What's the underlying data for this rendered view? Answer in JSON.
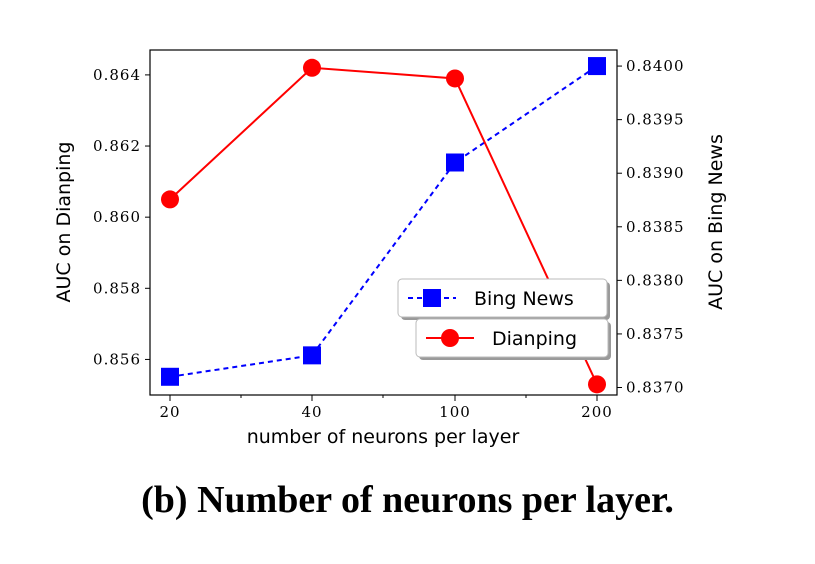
{
  "caption": "(b) Number of neurons per layer.",
  "chart_data": {
    "type": "line",
    "categories": [
      "20",
      "40",
      "100",
      "200"
    ],
    "xlabel": "number of neurons per layer",
    "ylabel_left": "AUC on Dianping",
    "ylabel_right": "AUC on Bing News",
    "ylim_left": [
      0.855,
      0.8647
    ],
    "ylim_right": [
      0.83693,
      0.84015
    ],
    "yticks_left": [
      "0.856",
      "0.858",
      "0.860",
      "0.862",
      "0.864"
    ],
    "yticks_right": [
      "0.8370",
      "0.8375",
      "0.8380",
      "0.8385",
      "0.8390",
      "0.8395",
      "0.8400"
    ],
    "legend_position": "lower-right",
    "series": [
      {
        "name": "Bing News",
        "axis": "right",
        "color": "#0000ff",
        "line_style": "dashed",
        "marker": "square",
        "values": [
          0.8371,
          0.8373,
          0.8391,
          0.84
        ]
      },
      {
        "name": "Dianping",
        "axis": "left",
        "color": "#ff0000",
        "line_style": "solid",
        "marker": "circle",
        "values": [
          0.8605,
          0.8642,
          0.8639,
          0.8553
        ]
      }
    ]
  }
}
